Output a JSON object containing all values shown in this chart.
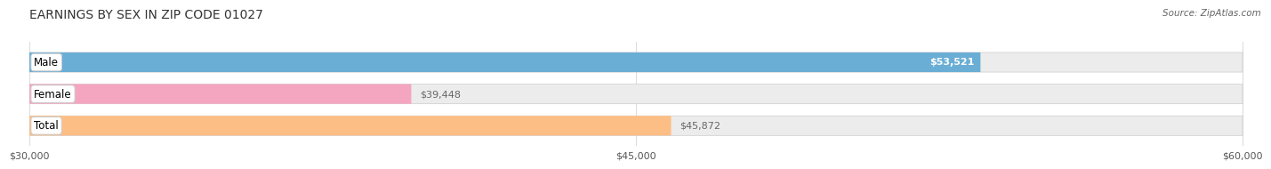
{
  "title": "EARNINGS BY SEX IN ZIP CODE 01027",
  "source": "Source: ZipAtlas.com",
  "categories": [
    "Male",
    "Female",
    "Total"
  ],
  "values": [
    53521,
    39448,
    45872
  ],
  "xmin": 30000,
  "xmax": 60000,
  "xticks": [
    30000,
    45000,
    60000
  ],
  "xtick_labels": [
    "$30,000",
    "$45,000",
    "$60,000"
  ],
  "bar_colors": [
    "#6aaed6",
    "#f4a6c0",
    "#fdbe85"
  ],
  "bar_bg_color": "#ececec",
  "bar_height": 0.62,
  "fig_width": 14.06,
  "fig_height": 1.96,
  "title_fontsize": 10,
  "label_fontsize": 8.5,
  "value_fontsize": 8,
  "tick_fontsize": 8,
  "value_inside_color": "white",
  "value_outside_color": "#666666"
}
